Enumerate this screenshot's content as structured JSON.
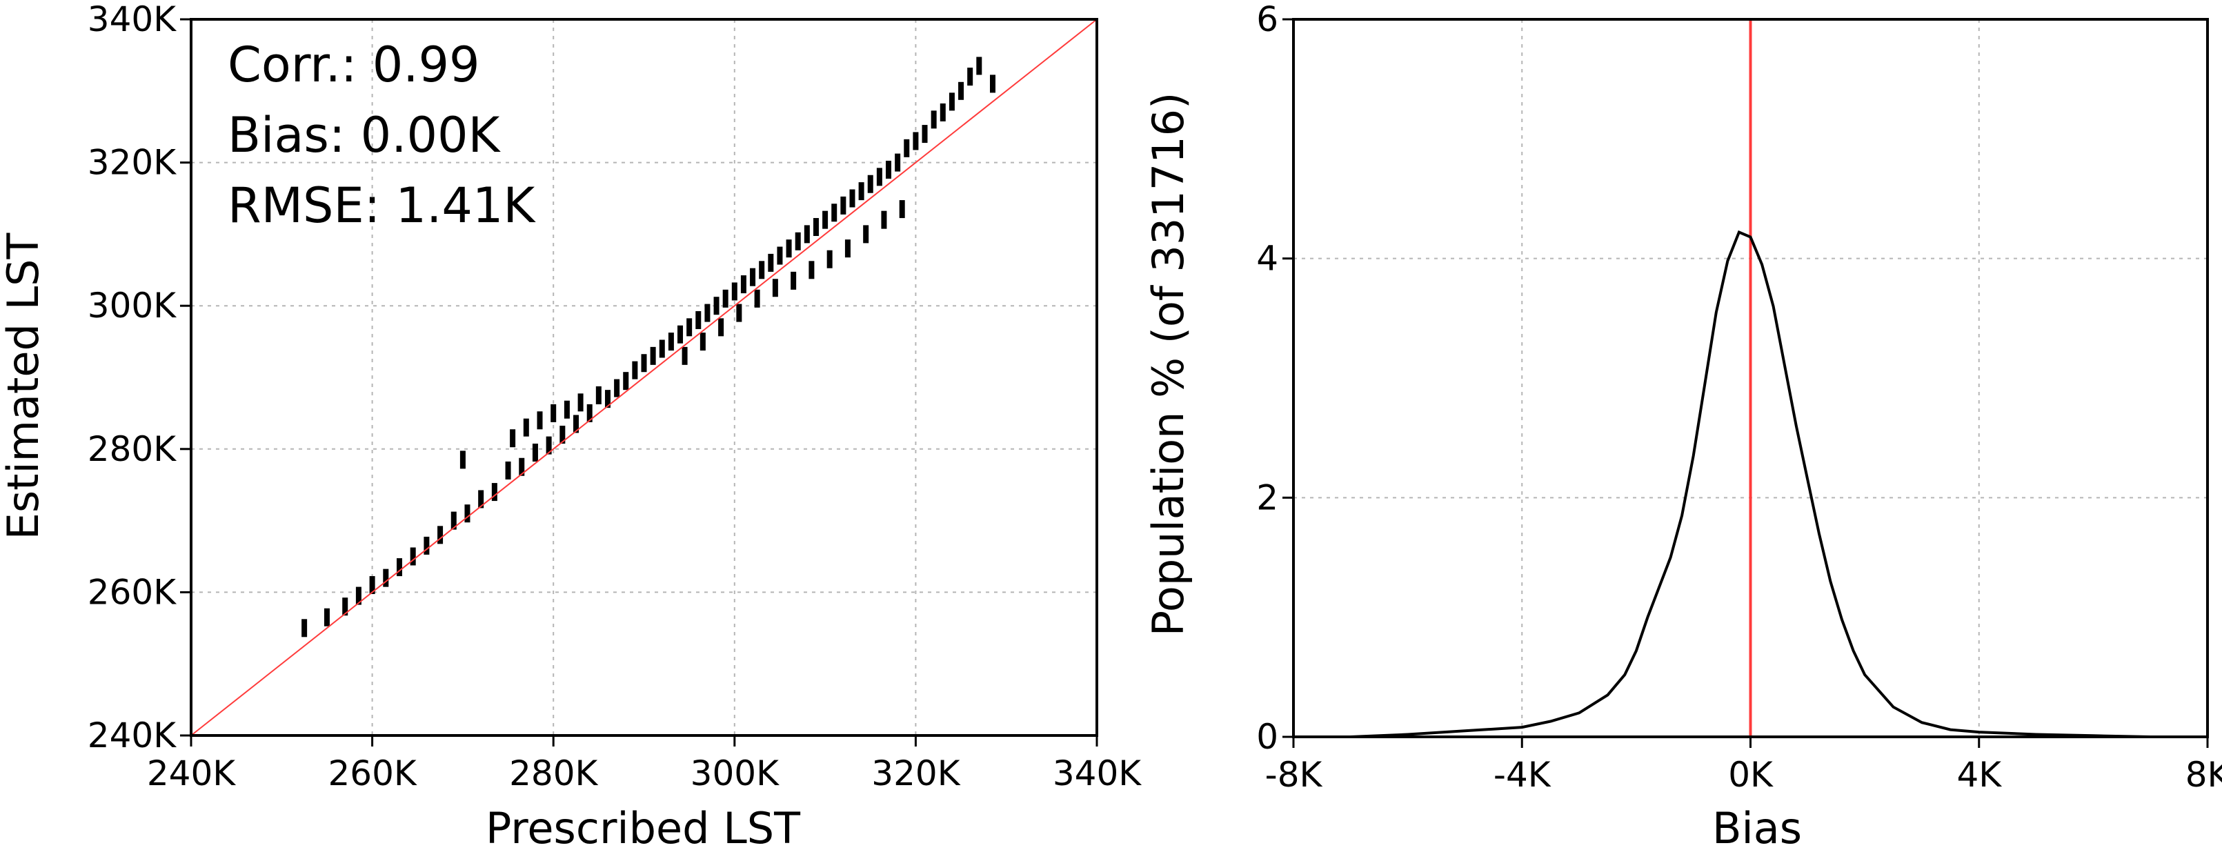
{
  "chart_data": [
    {
      "type": "scatter",
      "xlabel": "Prescribed LST",
      "ylabel": "Estimated LST",
      "xlim": [
        240,
        340
      ],
      "ylim": [
        240,
        340
      ],
      "x_ticks": [
        "240K",
        "260K",
        "280K",
        "300K",
        "320K",
        "340K"
      ],
      "y_ticks": [
        "240K",
        "260K",
        "280K",
        "300K",
        "320K",
        "340K"
      ],
      "tick_values": [
        240,
        260,
        280,
        300,
        320,
        340
      ],
      "grid": true,
      "annotations": [
        "Corr.: 0.99",
        "Bias: 0.00K",
        "RMSE: 1.41K"
      ],
      "reference_line": {
        "type": "1:1",
        "color": "#ff3b3b"
      },
      "point_color": "#000000",
      "series": [
        {
          "points": [
            [
              252.5,
              255.0
            ],
            [
              255.0,
              256.5
            ],
            [
              257.0,
              258.0
            ],
            [
              258.5,
              259.5
            ],
            [
              260.0,
              261.0
            ],
            [
              261.5,
              262.0
            ],
            [
              263.0,
              263.5
            ],
            [
              264.5,
              265.0
            ],
            [
              266.0,
              266.5
            ],
            [
              267.5,
              268.0
            ],
            [
              269.0,
              270.0
            ],
            [
              270.0,
              278.5
            ],
            [
              270.5,
              271.0
            ],
            [
              272.0,
              273.0
            ],
            [
              273.5,
              274.0
            ],
            [
              275.0,
              277.0
            ],
            [
              275.5,
              281.5
            ],
            [
              276.5,
              277.5
            ],
            [
              277.0,
              283.0
            ],
            [
              278.0,
              279.5
            ],
            [
              278.5,
              284.0
            ],
            [
              279.5,
              280.5
            ],
            [
              280.0,
              285.0
            ],
            [
              281.0,
              282.0
            ],
            [
              281.5,
              285.5
            ],
            [
              282.5,
              283.5
            ],
            [
              283.0,
              286.5
            ],
            [
              284.0,
              285.0
            ],
            [
              285.0,
              287.5
            ],
            [
              286.0,
              287.0
            ],
            [
              287.0,
              288.5
            ],
            [
              288.0,
              289.5
            ],
            [
              289.0,
              291.0
            ],
            [
              290.0,
              292.0
            ],
            [
              291.0,
              293.0
            ],
            [
              292.0,
              294.0
            ],
            [
              293.0,
              295.0
            ],
            [
              294.0,
              296.0
            ],
            [
              294.5,
              293.0
            ],
            [
              295.0,
              297.0
            ],
            [
              296.0,
              298.0
            ],
            [
              296.5,
              295.0
            ],
            [
              297.0,
              299.0
            ],
            [
              298.0,
              300.0
            ],
            [
              298.5,
              297.0
            ],
            [
              299.0,
              301.0
            ],
            [
              300.0,
              302.0
            ],
            [
              300.5,
              299.0
            ],
            [
              301.0,
              303.0
            ],
            [
              302.0,
              304.0
            ],
            [
              302.5,
              301.0
            ],
            [
              303.0,
              305.0
            ],
            [
              304.0,
              306.0
            ],
            [
              304.5,
              302.5
            ],
            [
              305.0,
              307.0
            ],
            [
              306.0,
              308.0
            ],
            [
              306.5,
              303.5
            ],
            [
              307.0,
              309.0
            ],
            [
              308.0,
              310.0
            ],
            [
              308.5,
              305.0
            ],
            [
              309.0,
              311.0
            ],
            [
              310.0,
              312.0
            ],
            [
              310.5,
              306.5
            ],
            [
              311.0,
              313.0
            ],
            [
              312.0,
              314.0
            ],
            [
              312.5,
              308.0
            ],
            [
              313.0,
              315.0
            ],
            [
              314.0,
              316.0
            ],
            [
              314.5,
              310.0
            ],
            [
              315.0,
              317.0
            ],
            [
              316.0,
              318.0
            ],
            [
              316.5,
              312.0
            ],
            [
              317.0,
              319.0
            ],
            [
              318.0,
              320.0
            ],
            [
              318.5,
              313.5
            ],
            [
              319.0,
              322.0
            ],
            [
              320.0,
              323.0
            ],
            [
              321.0,
              324.0
            ],
            [
              322.0,
              326.0
            ],
            [
              323.0,
              327.0
            ],
            [
              324.0,
              328.5
            ],
            [
              325.0,
              330.0
            ],
            [
              326.0,
              332.0
            ],
            [
              327.0,
              333.5
            ],
            [
              328.5,
              331.0
            ]
          ]
        }
      ]
    },
    {
      "type": "line",
      "xlabel": "Bias",
      "ylabel": "Population % (of 331716)",
      "xlim": [
        -8,
        8
      ],
      "ylim": [
        0,
        6
      ],
      "x_ticks": [
        "-8K",
        "-4K",
        "0K",
        "4K",
        "8K"
      ],
      "x_tick_values": [
        -8,
        -4,
        0,
        4,
        8
      ],
      "y_ticks": [
        "0",
        "2",
        "4",
        "6"
      ],
      "y_tick_values": [
        0,
        2,
        4,
        6
      ],
      "grid": true,
      "reference_line": {
        "x": 0,
        "color": "#ff3b3b"
      },
      "line_color": "#000000",
      "series": [
        {
          "x": [
            -7.0,
            -6.0,
            -5.0,
            -4.0,
            -3.5,
            -3.0,
            -2.5,
            -2.2,
            -2.0,
            -1.8,
            -1.6,
            -1.4,
            -1.2,
            -1.0,
            -0.8,
            -0.6,
            -0.4,
            -0.2,
            0.0,
            0.2,
            0.4,
            0.6,
            0.8,
            1.0,
            1.2,
            1.4,
            1.6,
            1.8,
            2.0,
            2.5,
            3.0,
            3.5,
            4.0,
            5.0,
            6.0,
            7.0
          ],
          "values": [
            0.0,
            0.02,
            0.05,
            0.08,
            0.13,
            0.2,
            0.35,
            0.52,
            0.72,
            1.0,
            1.25,
            1.5,
            1.85,
            2.35,
            2.95,
            3.55,
            3.98,
            4.22,
            4.18,
            3.95,
            3.6,
            3.1,
            2.6,
            2.15,
            1.7,
            1.3,
            0.98,
            0.72,
            0.52,
            0.25,
            0.12,
            0.06,
            0.04,
            0.02,
            0.01,
            0.0
          ]
        }
      ]
    }
  ]
}
